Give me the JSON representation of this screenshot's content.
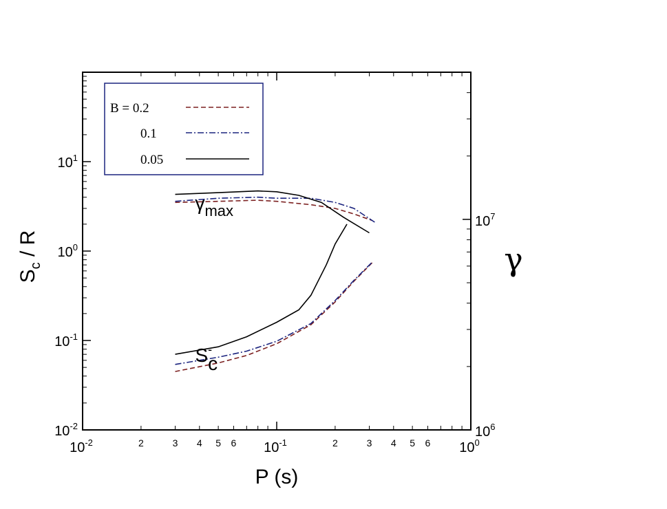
{
  "chart_data": {
    "type": "line",
    "xlabel": "P (s)",
    "x_scale": "log",
    "xlim": [
      0.01,
      1
    ],
    "x_major_ticks": [
      {
        "value": 0.01,
        "mantissa": "10",
        "exponent": "-2"
      },
      {
        "value": 0.1,
        "mantissa": "10",
        "exponent": "-1"
      },
      {
        "value": 1,
        "mantissa": "10",
        "exponent": "0"
      }
    ],
    "x_minor_labels": [
      {
        "value": 0.02,
        "label": "2"
      },
      {
        "value": 0.03,
        "label": "3"
      },
      {
        "value": 0.04,
        "label": "4"
      },
      {
        "value": 0.05,
        "label": "5"
      },
      {
        "value": 0.06,
        "label": "6"
      },
      {
        "value": 0.2,
        "label": "2"
      },
      {
        "value": 0.3,
        "label": "3"
      },
      {
        "value": 0.4,
        "label": "4"
      },
      {
        "value": 0.5,
        "label": "5"
      },
      {
        "value": 0.6,
        "label": "6"
      }
    ],
    "ylabel_left": {
      "main": "S",
      "sub": "c",
      "rest": " / R"
    },
    "y_left_scale": "log",
    "ylim_left": [
      0.01,
      100
    ],
    "y_left_ticks": [
      {
        "value": 0.01,
        "mantissa": "10",
        "exponent": "-2"
      },
      {
        "value": 0.1,
        "mantissa": "10",
        "exponent": "-1"
      },
      {
        "value": 1,
        "mantissa": "10",
        "exponent": "0"
      },
      {
        "value": 10,
        "mantissa": "10",
        "exponent": "1"
      }
    ],
    "ylabel_right": "γ",
    "y_right_scale": "log",
    "ylim_right": [
      1000000,
      50000000
    ],
    "y_right_ticks": [
      {
        "value": 1000000,
        "mantissa": "10",
        "exponent": "6"
      },
      {
        "value": 10000000,
        "mantissa": "10",
        "exponent": "7"
      }
    ],
    "legend": {
      "placement": "top-left",
      "border_color": "#1a237e",
      "entries": [
        {
          "label": "B = 0.2",
          "color": "#7b1f1f",
          "dash": "dashed"
        },
        {
          "label": "0.1",
          "color": "#1a237e",
          "dash": "dashdot"
        },
        {
          "label": "0.05",
          "color": "#000000",
          "dash": "solid"
        }
      ]
    },
    "annotations": [
      {
        "label": "γ",
        "sub": "max",
        "group": "gamma_max",
        "x": 0.038,
        "y": 2.9
      },
      {
        "label": "S",
        "sup": "-",
        "sub": "c",
        "group": "S_c",
        "x": 0.038,
        "y": 0.058
      }
    ],
    "series": [
      {
        "legend_index": 0,
        "group": "gamma_max",
        "color": "#7b1f1f",
        "dash": "dashed",
        "x": [
          0.03,
          0.05,
          0.08,
          0.1,
          0.15,
          0.2,
          0.25,
          0.31
        ],
        "y": [
          3.5,
          3.6,
          3.7,
          3.6,
          3.3,
          3.0,
          2.6,
          2.2
        ]
      },
      {
        "legend_index": 1,
        "group": "gamma_max",
        "color": "#1a237e",
        "dash": "dashdot",
        "x": [
          0.03,
          0.05,
          0.08,
          0.1,
          0.15,
          0.2,
          0.25,
          0.32
        ],
        "y": [
          3.6,
          3.9,
          4.0,
          3.9,
          3.9,
          3.5,
          3.0,
          2.1
        ]
      },
      {
        "legend_index": 2,
        "group": "gamma_max",
        "color": "#000000",
        "dash": "solid",
        "x": [
          0.03,
          0.05,
          0.08,
          0.1,
          0.13,
          0.17,
          0.22,
          0.3
        ],
        "y": [
          4.3,
          4.5,
          4.7,
          4.6,
          4.2,
          3.5,
          2.4,
          1.6
        ]
      },
      {
        "legend_index": 0,
        "group": "S_c",
        "color": "#7b1f1f",
        "dash": "dashed",
        "x": [
          0.03,
          0.05,
          0.07,
          0.1,
          0.15,
          0.2,
          0.25,
          0.31
        ],
        "y": [
          0.045,
          0.056,
          0.068,
          0.092,
          0.15,
          0.27,
          0.46,
          0.74
        ]
      },
      {
        "legend_index": 1,
        "group": "S_c",
        "color": "#1a237e",
        "dash": "dashdot",
        "x": [
          0.03,
          0.05,
          0.07,
          0.1,
          0.15,
          0.2,
          0.25,
          0.31
        ],
        "y": [
          0.054,
          0.065,
          0.076,
          0.098,
          0.155,
          0.28,
          0.47,
          0.75
        ]
      },
      {
        "legend_index": 2,
        "group": "S_c",
        "color": "#000000",
        "dash": "solid",
        "x": [
          0.03,
          0.05,
          0.07,
          0.1,
          0.13,
          0.15,
          0.18,
          0.2,
          0.23
        ],
        "y": [
          0.07,
          0.085,
          0.11,
          0.16,
          0.22,
          0.32,
          0.7,
          1.2,
          2.0
        ]
      }
    ]
  }
}
